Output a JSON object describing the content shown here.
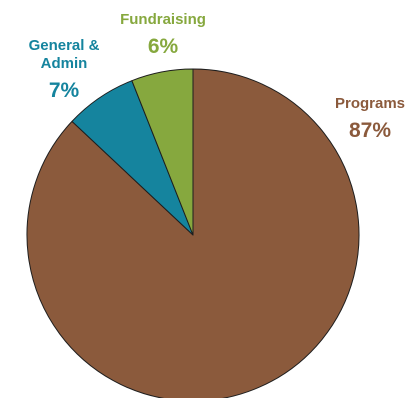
{
  "chart_data": {
    "type": "pie",
    "title": "",
    "start": "12 o'clock",
    "direction": "clockwise",
    "slices": [
      {
        "label": "Programs",
        "value": 87,
        "display": "87%",
        "color": "#8b5a3c"
      },
      {
        "label": "General &\nAdmin",
        "value": 7,
        "display": "7%",
        "color": "#15849e"
      },
      {
        "label": "Fundraising",
        "value": 6,
        "display": "6%",
        "color": "#86a83e"
      }
    ]
  }
}
